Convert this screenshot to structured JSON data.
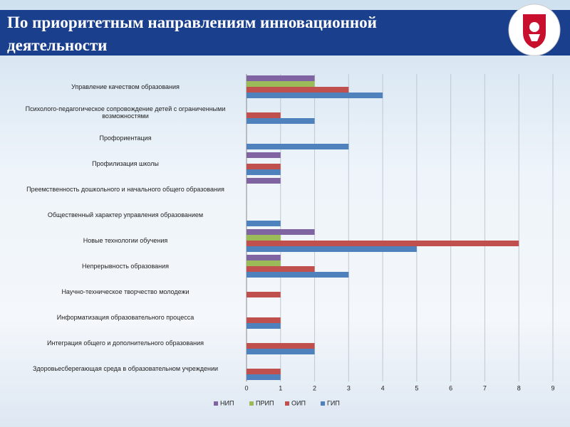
{
  "title": "По приоритетным направлениям инновационной деятельности",
  "chart_data": {
    "type": "bar",
    "orientation": "horizontal",
    "categories": [
      "Управление качеством образования",
      "Психолого-педагогическое сопровождение детей с ограниченными возможностями",
      "Профориентация",
      "Профилизация школы",
      "Преемственность дошкольного и начального общего образования",
      "Общественный характер управления образованием",
      "Новые технологии обучения",
      "Непрерывность образования",
      "Научно-техническое творчество молодежи",
      "Информатизация образовательного процесса",
      "Интеграция общего и дополнительного образования",
      "Здоровьесберегающая среда в образовательном учреждении"
    ],
    "series": [
      {
        "name": "НИП",
        "color": "#8064a2",
        "values": [
          2,
          null,
          null,
          1,
          1,
          null,
          2,
          1,
          null,
          null,
          null,
          null
        ]
      },
      {
        "name": "ПРИП",
        "color": "#9bbb59",
        "values": [
          2,
          null,
          null,
          null,
          null,
          null,
          1,
          1,
          null,
          null,
          null,
          null
        ]
      },
      {
        "name": "ОИП",
        "color": "#c0504d",
        "values": [
          3,
          1,
          null,
          1,
          null,
          null,
          8,
          2,
          1,
          1,
          2,
          1
        ]
      },
      {
        "name": "ГИП",
        "color": "#4f81bd",
        "values": [
          4,
          2,
          3,
          1,
          null,
          1,
          5,
          3,
          null,
          1,
          2,
          1
        ]
      }
    ],
    "xlim": [
      0,
      9
    ],
    "xticks": [
      0,
      1,
      2,
      3,
      4,
      5,
      6,
      7,
      8,
      9
    ],
    "grid": true,
    "legend": "bottom"
  }
}
